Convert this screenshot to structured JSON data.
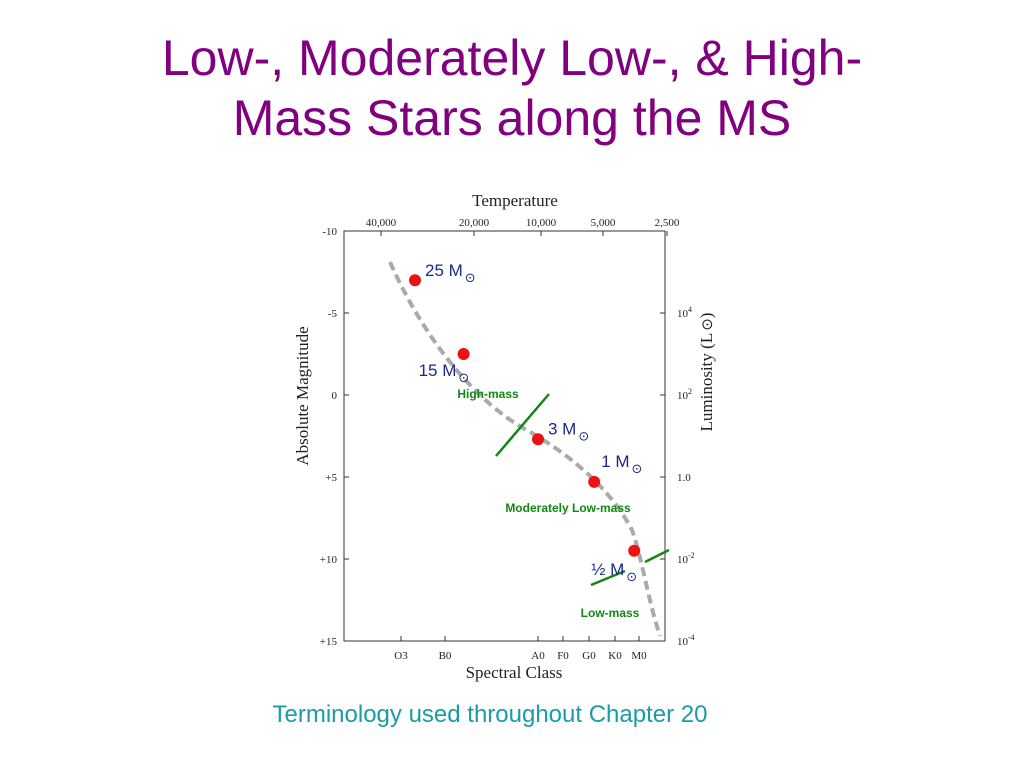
{
  "slide": {
    "title_line1": "Low-, Moderately Low-, & High-",
    "title_line2": "Mass Stars along the MS",
    "caption": "Terminology used throughout Chapter 20"
  },
  "colors": {
    "title": "#800080",
    "caption": "#1a9ca6",
    "star_marker": "#ee1111",
    "mass_label": "#1a2a8c",
    "boundary_line": "#118811",
    "main_sequence": "#aaaaaa"
  },
  "chart_data": {
    "type": "scatter",
    "title": "Temperature",
    "xlabel": "Spectral Class",
    "ylabel": "Absolute Magnitude",
    "ylabel_right": "Luminosity (L",
    "ylim": [
      -10,
      15
    ],
    "y_inverted": true,
    "grid": false,
    "x_ticks_bottom": [
      "O3",
      "B0",
      "A0",
      "F0",
      "G0",
      "K0",
      "M0"
    ],
    "x_ticks_top": [
      "40,000",
      "20,000",
      "10,000",
      "5,000",
      "2,500"
    ],
    "y_ticks_left": [
      "-10",
      "-5",
      "0",
      "+5",
      "+10",
      "+15"
    ],
    "y_ticks_right": [
      {
        "base": "10",
        "exp": "4"
      },
      {
        "base": "10",
        "exp": "2"
      },
      {
        "base": "1.0",
        "exp": ""
      },
      {
        "base": "10",
        "exp": "-2"
      },
      {
        "base": "10",
        "exp": "-4"
      }
    ],
    "stars": [
      {
        "label": "25 M",
        "spectral": "O5",
        "abs_mag": -7.0
      },
      {
        "label": "15 M",
        "spectral": "B2",
        "abs_mag": -2.5
      },
      {
        "label": "3 M",
        "spectral": "A0",
        "abs_mag": 2.7
      },
      {
        "label": "1 M",
        "spectral": "G2",
        "abs_mag": 5.3
      },
      {
        "label": "½ M",
        "spectral": "K8",
        "abs_mag": 9.5
      }
    ],
    "regions": [
      {
        "label": "High-mass"
      },
      {
        "label": "Moderately Low-mass"
      },
      {
        "label": "Low-mass"
      }
    ]
  }
}
